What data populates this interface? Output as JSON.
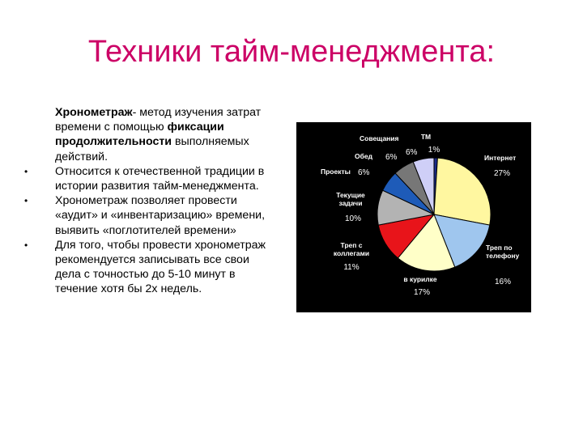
{
  "slide": {
    "title": "Техники тайм-менеджмента:",
    "p1_bold1": "Хронометраж",
    "p1_text1": "- метод изучения затрат времени с помощью ",
    "p1_bold2": "фиксации продолжительности",
    "p1_text2": " выполняемых действий.",
    "p2": "Относится к отечественной традиции в истории развития тайм-менеджмента.",
    "p3": "Хронометраж позволяет провести «аудит» и «инвентаризацию» времени, выявить «поглотителей времени»",
    "p4": "Для того, чтобы провести хронометраж рекомендуется записывать все свои дела с точностью до 5-10 минут в течение хотя бы 2х недель.",
    "bullet": "•"
  },
  "chart_data": {
    "type": "pie",
    "background": "#000000",
    "slices": [
      {
        "name": "ТМ",
        "label_lines": [
          "ТМ"
        ],
        "value_label": "1%",
        "value": 1,
        "color": "#1a2a88"
      },
      {
        "name": "Интернет",
        "label_lines": [
          "Интернет"
        ],
        "value_label": "27%",
        "value": 27,
        "color": "#fff7a0"
      },
      {
        "name": "Треп по телефону",
        "label_lines": [
          "Треп по",
          "телефону"
        ],
        "value_label": "16%",
        "value": 16,
        "color": "#9fc6ee"
      },
      {
        "name": "в курилке",
        "label_lines": [
          "в курилке"
        ],
        "value_label": "17%",
        "value": 17,
        "color": "#ffffc8"
      },
      {
        "name": "Треп с коллегами",
        "label_lines": [
          "Треп с",
          "коллегами"
        ],
        "value_label": "11%",
        "value": 11,
        "color": "#e8141a"
      },
      {
        "name": "Текущие задачи",
        "label_lines": [
          "Текущие",
          "задачи"
        ],
        "value_label": "10%",
        "value": 10,
        "color": "#b3b3b3"
      },
      {
        "name": "Проекты",
        "label_lines": [
          "Проекты"
        ],
        "value_label": "6%",
        "value": 6,
        "color": "#1e5bb8"
      },
      {
        "name": "Обед",
        "label_lines": [
          "Обед"
        ],
        "value_label": "6%",
        "value": 6,
        "color": "#777777"
      },
      {
        "name": "Совещания",
        "label_lines": [
          "Совещания"
        ],
        "value_label": "6%",
        "value": 6,
        "color": "#cfcff7"
      }
    ]
  }
}
